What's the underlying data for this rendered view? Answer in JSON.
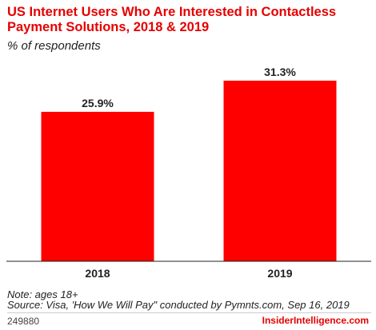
{
  "header": {
    "title": "US Internet Users Who Are Interested in Contactless Payment Solutions, 2018 & 2019",
    "subtitle": "% of respondents"
  },
  "chart_data": {
    "type": "bar",
    "categories": [
      "2018",
      "2019"
    ],
    "values": [
      25.9,
      31.3
    ],
    "value_labels": [
      "25.9%",
      "31.3%"
    ],
    "title": "US Internet Users Who Are Interested in Contactless Payment Solutions, 2018 & 2019",
    "subtitle": "% of respondents",
    "xlabel": "",
    "ylabel": "",
    "ylim": [
      0,
      36
    ],
    "grid": false,
    "legend": "none",
    "bar_color": "#ff0000"
  },
  "footer": {
    "note": "Note: ages 18+",
    "source": "Source: Visa, 'How We Will Pay\" conducted by Pymnts.com, Sep 16, 2019",
    "chart_id": "249880",
    "brand": "InsiderIntelligence.com"
  },
  "colors": {
    "accent": "#e60000",
    "bar": "#ff0000",
    "text": "#222222"
  }
}
